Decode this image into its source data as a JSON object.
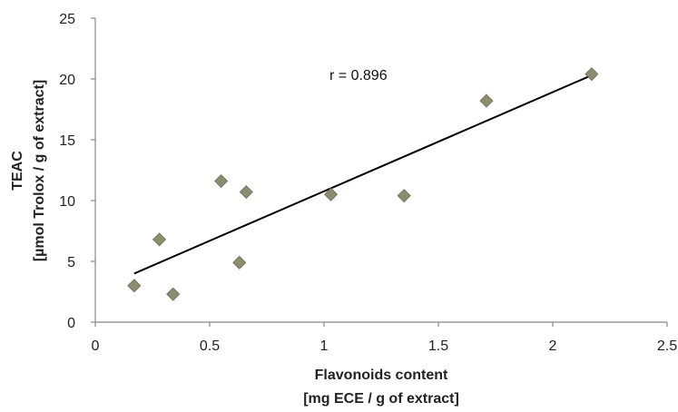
{
  "chart_data": {
    "type": "scatter",
    "title": "",
    "xlabel_lines": [
      "Flavonoids content",
      "[mg ECE / g of extract]"
    ],
    "ylabel_lines": [
      "TEAC",
      "[µmol Trolox  / g of extract]"
    ],
    "xlim": [
      0,
      2.5
    ],
    "ylim": [
      0,
      25
    ],
    "x_ticks": [
      0,
      0.5,
      1,
      1.5,
      2,
      2.5
    ],
    "x_tick_labels": [
      "0",
      "0.5",
      "1",
      "1.5",
      "2",
      "2.5"
    ],
    "y_ticks": [
      0,
      5,
      10,
      15,
      20,
      25
    ],
    "y_tick_labels": [
      "0",
      "5",
      "10",
      "15",
      "20",
      "25"
    ],
    "grid": false,
    "legend": "none",
    "series": [
      {
        "marker": "diamond",
        "color": "#8c8c70",
        "x": [
          0.17,
          0.28,
          0.34,
          0.55,
          0.63,
          0.66,
          1.03,
          1.35,
          1.71,
          2.17
        ],
        "y": [
          3.0,
          6.8,
          2.3,
          11.6,
          4.9,
          10.7,
          10.5,
          10.4,
          18.2,
          20.4
        ]
      }
    ],
    "trendline": {
      "color": "#000000",
      "x": [
        0.17,
        2.17
      ],
      "y": [
        4.0,
        20.3
      ]
    },
    "annotation": "r = 0.896"
  }
}
